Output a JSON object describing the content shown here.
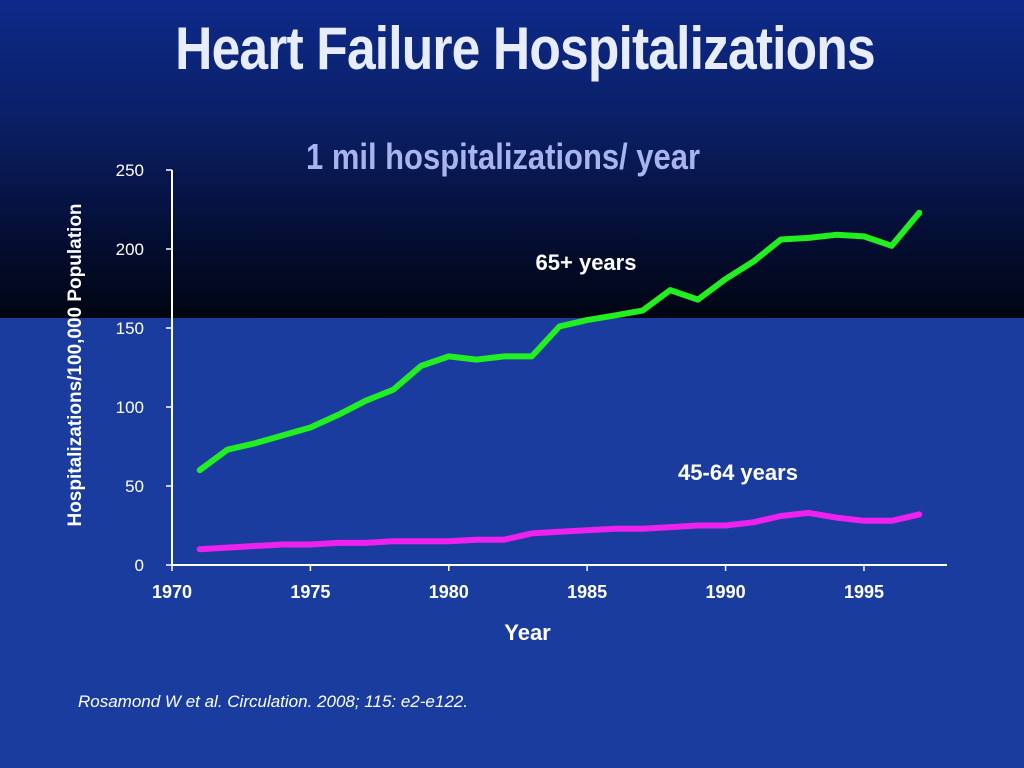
{
  "slide": {
    "title": "Heart Failure Hospitalizations",
    "subtitle": "1 mil hospitalizations/ year",
    "citation": "Rosamond W et al. Circulation. 2008; 115: e2-e122."
  },
  "colors": {
    "series_65_plus": "#22ee22",
    "series_45_64": "#ee22ee",
    "text": "#ffffff",
    "axis": "#ffffff"
  },
  "chart_data": {
    "type": "line",
    "title": "1 mil hospitalizations/ year",
    "xlabel": "Year",
    "ylabel": "Hospitalizations/100,000 Population",
    "xlim": [
      1970,
      1998
    ],
    "ylim": [
      0,
      250
    ],
    "x_ticks": [
      1970,
      1975,
      1980,
      1985,
      1990,
      1995
    ],
    "y_ticks": [
      0,
      50,
      100,
      150,
      200,
      250
    ],
    "grid": false,
    "x": [
      1971,
      1972,
      1973,
      1974,
      1975,
      1976,
      1977,
      1978,
      1979,
      1980,
      1981,
      1982,
      1983,
      1984,
      1985,
      1986,
      1987,
      1988,
      1989,
      1990,
      1991,
      1992,
      1993,
      1994,
      1995,
      1996,
      1997
    ],
    "series": [
      {
        "name": "65+ years",
        "values": [
          60,
          73,
          77,
          82,
          87,
          95,
          104,
          111,
          126,
          132,
          130,
          132,
          132,
          151,
          155,
          158,
          161,
          174,
          168,
          181,
          192,
          206,
          207,
          209,
          208,
          202,
          223
        ]
      },
      {
        "name": "45-64 years",
        "values": [
          10,
          11,
          12,
          13,
          13,
          14,
          14,
          15,
          15,
          15,
          16,
          16,
          20,
          21,
          22,
          23,
          23,
          24,
          25,
          25,
          27,
          31,
          33,
          30,
          28,
          28,
          32
        ]
      }
    ]
  }
}
